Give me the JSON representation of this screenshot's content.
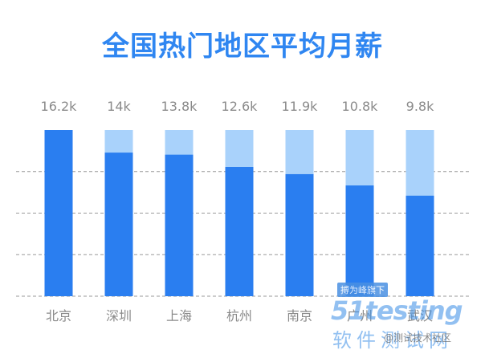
{
  "colors": {
    "title": "#2f86f1",
    "bar_main": "#2a7ef0",
    "bar_light": "#a9d2fb",
    "gridline": "#9a9a9a",
    "label": "#8a8a8a"
  },
  "chart_data": {
    "type": "bar",
    "title": "全国热门地区平均月薪",
    "categories": [
      "北京",
      "深圳",
      "上海",
      "杭州",
      "南京",
      "广州",
      "武汉"
    ],
    "values": [
      16.2,
      14,
      13.8,
      12.6,
      11.9,
      10.8,
      9.8
    ],
    "value_labels": [
      "16.2k",
      "14k",
      "13.8k",
      "12.6k",
      "11.9k",
      "10.8k",
      "9.8k"
    ],
    "max_reference": 16.2,
    "ylim": [
      0,
      16.2
    ],
    "grid": true,
    "xlabel": "",
    "ylabel": ""
  },
  "watermark": {
    "tag": "搏为峰旗下",
    "logo": "51testing",
    "sub": "软件测试网",
    "author": "@测试技术社区"
  }
}
